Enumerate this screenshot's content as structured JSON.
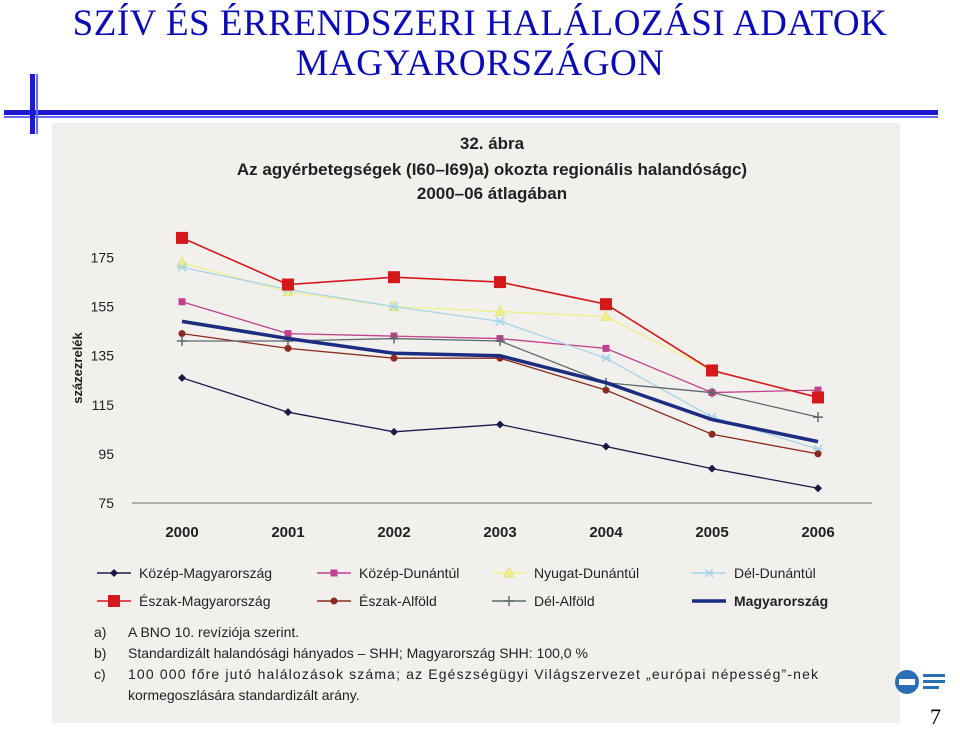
{
  "slide": {
    "title_line1": "SZÍV ÉS ÉRRENDSZERI HALÁLOZÁSI ADATOK",
    "title_line2": "MAGYARORSZÁGON",
    "page_number": "7"
  },
  "chart_data": {
    "type": "line",
    "figure_label": "32. ábra",
    "title_line1": "Az agyérbetegségek (I60–I69)a) okozta regionális halandóságc)",
    "title_line2": "2000–06 átlagában",
    "ylabel": "százezrelék",
    "xlabel": "",
    "ylim": [
      75,
      185
    ],
    "yticks": [
      "175",
      "155",
      "135",
      "115",
      "95",
      "75"
    ],
    "x": [
      "2000",
      "2001",
      "2002",
      "2003",
      "2004",
      "2005",
      "2006"
    ],
    "series": [
      {
        "name": "Közép-Magyarország",
        "color": "#1a1a4a",
        "marker": "diamond",
        "values": [
          126,
          112,
          104,
          107,
          98,
          89,
          81
        ]
      },
      {
        "name": "Közép-Dunántúl",
        "color": "#c0418e",
        "marker": "square-small",
        "values": [
          157,
          144,
          143,
          142,
          138,
          120,
          121
        ]
      },
      {
        "name": "Nyugat-Dunántúl",
        "color": "#eef08a",
        "marker": "triangle",
        "values": [
          173,
          161,
          155,
          153,
          151,
          129,
          118
        ]
      },
      {
        "name": "Dél-Dunántúl",
        "color": "#a8d4ea",
        "marker": "star",
        "values": [
          171,
          162,
          155,
          149,
          134,
          110,
          97
        ]
      },
      {
        "name": "Észak-Magyarország",
        "color": "#d4191b",
        "marker": "square-big",
        "values": [
          183,
          164,
          167,
          165,
          156,
          129,
          118
        ]
      },
      {
        "name": "Észak-Alföld",
        "color": "#8b2a1e",
        "marker": "circle",
        "values": [
          144,
          138,
          134,
          134,
          121,
          103,
          95
        ]
      },
      {
        "name": "Dél-Alföld",
        "color": "#5c6a6a",
        "marker": "plus",
        "values": [
          141,
          141,
          142,
          141,
          124,
          120,
          110
        ]
      },
      {
        "name": "Magyarország",
        "color": "#1c2c80",
        "marker": "none",
        "values": [
          149,
          142,
          136,
          135,
          124,
          109,
          100
        ]
      }
    ],
    "footnotes": [
      {
        "mark": "a)",
        "text": "A BNO 10. revíziója szerint."
      },
      {
        "mark": "b)",
        "text": "Standardizált halandósági hányados – SHH; Magyarország SHH: 100,0 %"
      },
      {
        "mark": "c)",
        "text": "100 000 főre jutó halálozások száma; az Egészségügyi Világszervezet „európai népesség”-nek"
      },
      {
        "mark": "",
        "text": "kormegoszlására standardizált arány."
      }
    ]
  }
}
